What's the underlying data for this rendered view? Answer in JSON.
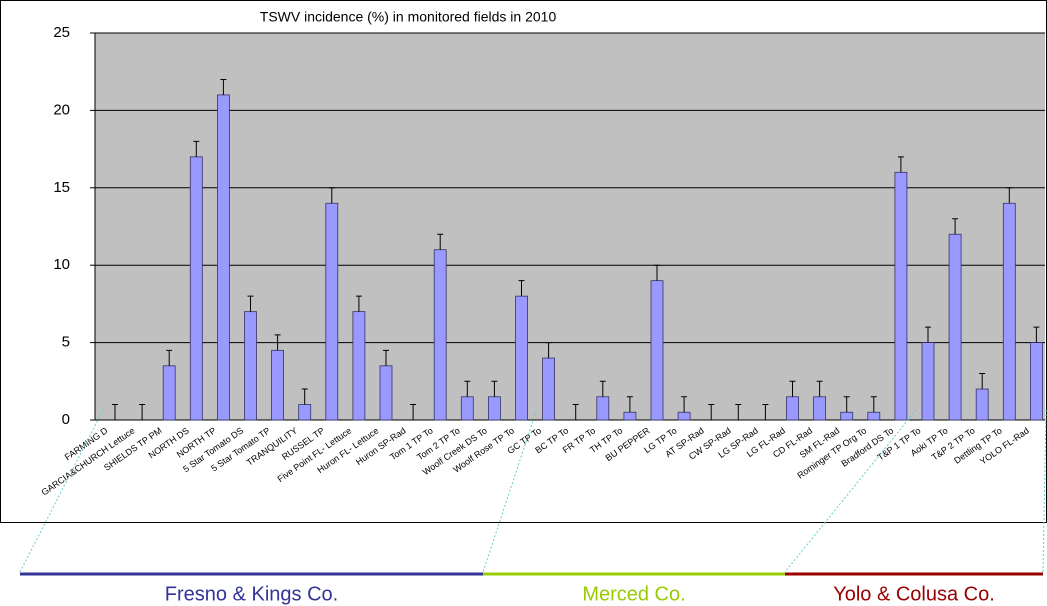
{
  "chart_data": {
    "type": "bar",
    "title": "TSWV incidence (%) in monitored fields in 2010",
    "categories": [
      "FARMING D",
      "GARCIA&CHURCH Lettuce",
      "SHIELDS TP PM",
      "NORTH DS",
      "NORTH TP",
      "5 Star Tomato DS",
      "5 Star Tomato TP",
      "TRANQUILITY",
      "RUSSEL TP",
      "Five Point  FL- Lettuce",
      "Huron  FL- Lettuce",
      "Huron SP-Rad",
      "Tom 1 TP To",
      "Tom 2 TP To",
      "Woolf Creek DS To",
      "Woolf Rose TP To",
      "GC TP To",
      "BC TP To",
      "FR TP To",
      "TH TP To",
      "BU PEPPER",
      "LG TP To",
      "AT SP-Rad",
      "CW SP-Rad",
      "LG SP-Rad",
      "LG FL-Rad",
      "CD FL-Rad",
      "SM FL-Rad",
      "Rominger TP Org To",
      "Bradford DS To",
      "T&P 1 TP To",
      "Aoki TP To",
      "T&P 2 TP To",
      "Dettling TP To",
      "YOLO FL-Rad"
    ],
    "values": [
      0,
      0,
      3.5,
      17,
      21,
      7,
      4.5,
      1,
      14,
      7,
      3.5,
      0,
      11,
      1.5,
      1.5,
      8,
      4,
      0,
      1.5,
      0.5,
      9,
      0.5,
      0,
      0,
      0,
      1.5,
      1.5,
      0.5,
      0.5,
      16,
      5,
      12,
      2,
      14,
      5
    ],
    "errors": [
      1,
      1,
      1,
      1,
      1,
      1,
      1,
      1,
      1,
      1,
      1,
      1,
      1,
      1,
      1,
      1,
      1,
      1,
      1,
      1,
      1,
      1,
      1,
      1,
      1,
      1,
      1,
      1,
      1,
      1,
      1,
      1,
      1,
      1,
      1
    ],
    "color": "#9999ff",
    "ylim": [
      0,
      25
    ],
    "yticks": [
      0,
      5,
      10,
      15,
      20,
      25
    ],
    "grid": true,
    "regions": [
      {
        "name": "Fresno & Kings Co.",
        "color": "#333399"
      },
      {
        "name": "Merced Co.",
        "color": "#99cc00"
      },
      {
        "name": "Yolo & Colusa Co.",
        "color": "#990000"
      }
    ]
  }
}
